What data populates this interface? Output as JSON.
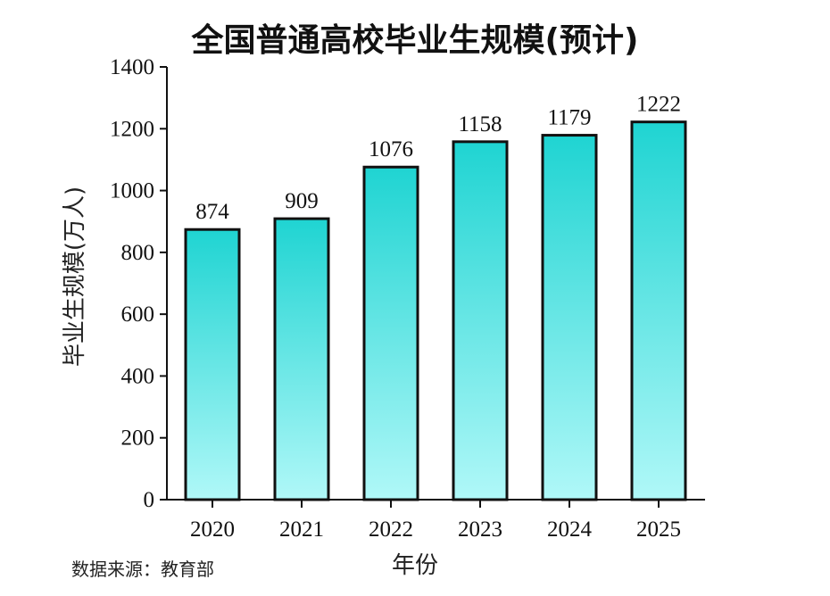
{
  "chart_data": {
    "type": "bar",
    "title": "全国普通高校毕业生规模(预计)",
    "xlabel": "年份",
    "ylabel": "毕业生规模(万人)",
    "categories": [
      "2020",
      "2021",
      "2022",
      "2023",
      "2024",
      "2025"
    ],
    "values": [
      874,
      909,
      1076,
      1158,
      1179,
      1222
    ],
    "ylim": [
      0,
      1400
    ],
    "yticks": [
      0,
      200,
      400,
      600,
      800,
      1000,
      1200,
      1400
    ],
    "grid": false,
    "colors": {
      "bar_top": "#1fd4d2",
      "bar_bottom": "#b0f8f8",
      "outline": "#111111"
    }
  },
  "source": "数据来源：教育部"
}
